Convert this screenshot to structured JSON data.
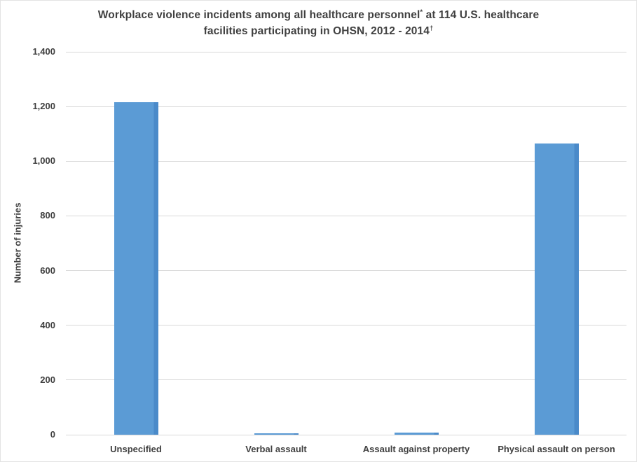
{
  "title": {
    "line1_pre": "Workplace violence incidents among all healthcare personnel",
    "line1_sup": "*",
    "line1_post": " at 114 U.S. healthcare",
    "line2_pre": "facilities participating in OHSN, 2012 - 2014",
    "line2_sup": "†"
  },
  "chart_data": {
    "type": "bar",
    "title": "Workplace violence incidents among all healthcare personnel* at 114 U.S. healthcare facilities participating in OHSN, 2012 - 2014†",
    "categories": [
      "Unspecified",
      "Verbal assault",
      "Assault against property",
      "Physical assault on person"
    ],
    "values": [
      1215,
      5,
      8,
      1065
    ],
    "xlabel": "",
    "ylabel": "Number of injuries",
    "ylim": [
      0,
      1400
    ],
    "ytick_interval": 200,
    "ytick_labels": [
      "0",
      "200",
      "400",
      "600",
      "800",
      "1,000",
      "1,200",
      "1,400"
    ],
    "grid": true,
    "legend": false,
    "legend_position": "none",
    "colors": {
      "bar": "#5B9BD5",
      "bar_edge": "#4A8AC9",
      "gridline": "#D9D9D9",
      "text": "#404040",
      "background": "#FFFFFF"
    }
  }
}
